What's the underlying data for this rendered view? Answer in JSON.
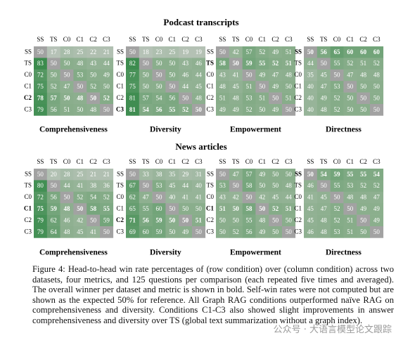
{
  "conditions": [
    "SS",
    "TS",
    "C0",
    "C1",
    "C2",
    "C3"
  ],
  "sections": [
    {
      "title": "Podcast transcripts",
      "charts": [
        {
          "type": "heatmap",
          "title": "Comprehensiveness",
          "winner_row": 4,
          "values": [
            [
              50,
              17,
              28,
              25,
              22,
              21
            ],
            [
              83,
              50,
              50,
              48,
              43,
              44
            ],
            [
              72,
              50,
              50,
              53,
              50,
              49
            ],
            [
              75,
              52,
              47,
              50,
              52,
              50
            ],
            [
              78,
              57,
              50,
              48,
              50,
              52
            ],
            [
              79,
              56,
              51,
              50,
              48,
              50
            ]
          ]
        },
        {
          "type": "heatmap",
          "title": "Diversity",
          "winner_row": 5,
          "values": [
            [
              50,
              18,
              23,
              25,
              19,
              19
            ],
            [
              82,
              50,
              50,
              50,
              43,
              46
            ],
            [
              77,
              50,
              50,
              50,
              46,
              44
            ],
            [
              75,
              50,
              50,
              50,
              44,
              45
            ],
            [
              81,
              57,
              54,
              56,
              50,
              48
            ],
            [
              81,
              54,
              56,
              55,
              52,
              50
            ]
          ]
        },
        {
          "type": "heatmap",
          "title": "Empowerment",
          "winner_row": 1,
          "values": [
            [
              50,
              42,
              57,
              52,
              49,
              51
            ],
            [
              58,
              50,
              59,
              55,
              52,
              51
            ],
            [
              43,
              41,
              50,
              49,
              47,
              48
            ],
            [
              48,
              45,
              51,
              50,
              49,
              50
            ],
            [
              51,
              48,
              53,
              51,
              50,
              51
            ],
            [
              49,
              49,
              52,
              50,
              49,
              50
            ]
          ]
        },
        {
          "type": "heatmap",
          "title": "Directness",
          "winner_row": 0,
          "values": [
            [
              50,
              56,
              65,
              60,
              60,
              60
            ],
            [
              44,
              50,
              55,
              52,
              51,
              52
            ],
            [
              35,
              45,
              50,
              47,
              48,
              48
            ],
            [
              40,
              47,
              53,
              50,
              50,
              50
            ],
            [
              40,
              49,
              52,
              50,
              50,
              50
            ],
            [
              40,
              48,
              52,
              50,
              50,
              50
            ]
          ]
        }
      ]
    },
    {
      "title": "News articles",
      "charts": [
        {
          "type": "heatmap",
          "title": "Comprehensiveness",
          "winner_row": 3,
          "values": [
            [
              50,
              20,
              28,
              25,
              21,
              21
            ],
            [
              80,
              50,
              44,
              41,
              38,
              36
            ],
            [
              72,
              56,
              50,
              52,
              54,
              52
            ],
            [
              75,
              59,
              48,
              50,
              58,
              55
            ],
            [
              79,
              62,
              46,
              42,
              50,
              59
            ],
            [
              79,
              64,
              48,
              45,
              41,
              50
            ]
          ]
        },
        {
          "type": "heatmap",
          "title": "Diversity",
          "winner_row": 4,
          "values": [
            [
              50,
              33,
              38,
              35,
              29,
              31
            ],
            [
              67,
              50,
              53,
              45,
              44,
              40
            ],
            [
              62,
              47,
              50,
              40,
              41,
              41
            ],
            [
              65,
              55,
              60,
              50,
              50,
              50
            ],
            [
              71,
              56,
              59,
              50,
              50,
              51
            ],
            [
              69,
              60,
              59,
              50,
              49,
              50
            ]
          ]
        },
        {
          "type": "heatmap",
          "title": "Empowerment",
          "winner_row": 3,
          "values": [
            [
              50,
              47,
              57,
              49,
              50,
              50
            ],
            [
              53,
              50,
              58,
              50,
              50,
              48
            ],
            [
              43,
              42,
              50,
              42,
              45,
              44
            ],
            [
              51,
              50,
              58,
              50,
              52,
              51
            ],
            [
              50,
              50,
              55,
              48,
              50,
              50
            ],
            [
              50,
              52,
              56,
              49,
              50,
              50
            ]
          ]
        },
        {
          "type": "heatmap",
          "title": "Directness",
          "winner_row": 0,
          "values": [
            [
              50,
              54,
              59,
              55,
              55,
              54
            ],
            [
              46,
              50,
              55,
              53,
              52,
              52
            ],
            [
              41,
              45,
              50,
              48,
              48,
              47
            ],
            [
              45,
              47,
              52,
              50,
              49,
              49
            ],
            [
              45,
              48,
              52,
              51,
              50,
              49
            ],
            [
              46,
              48,
              53,
              51,
              50,
              50
            ]
          ]
        }
      ]
    }
  ],
  "caption": "Figure 4: Head-to-head win rate percentages of (row condition) over (column condition) across two datasets, four metrics, and 125 questions per comparison (each repeated five times and averaged). The overall winner per dataset and metric is shown in bold. Self-win rates were not computed but are shown as the expected 50% for reference. All Graph RAG conditions outperformed naïve RAG on comprehensiveness and diversity. Conditions C1-C3 also showed slight improvements in answer comprehensiveness and diversity over TS (global text summarization without a graph index).",
  "watermark": "公众号 · 大语言模型论文跟踪"
}
